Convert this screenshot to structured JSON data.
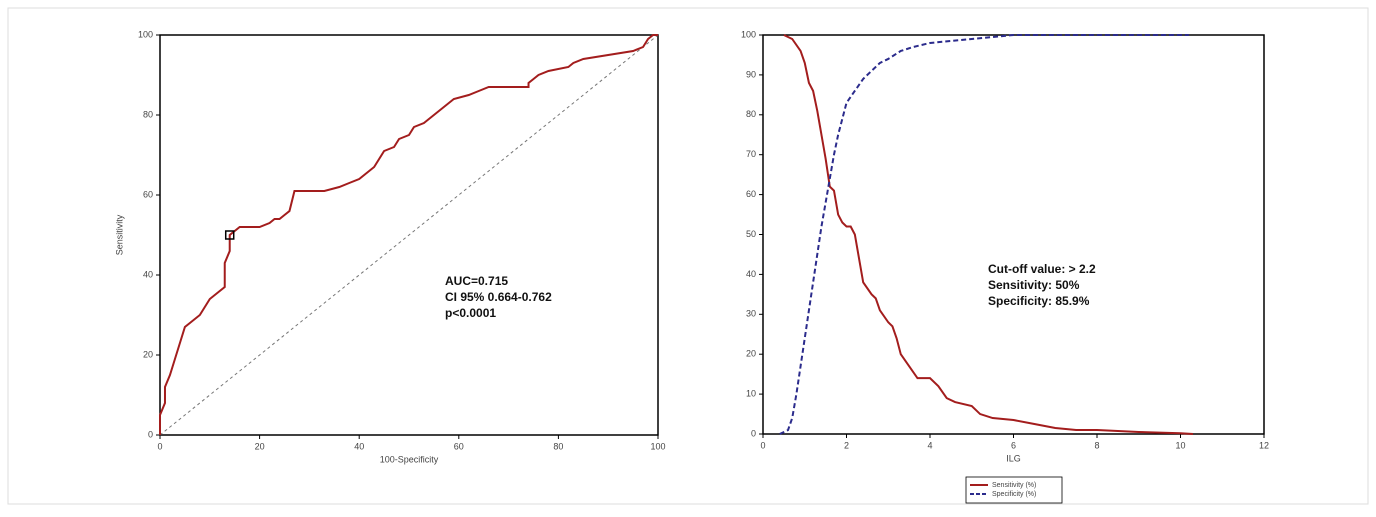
{
  "chart_data": [
    {
      "type": "line",
      "xlabel": "100-Specificity",
      "ylabel": "Sensitivity",
      "xlim": [
        0,
        100
      ],
      "ylim": [
        0,
        100
      ],
      "xticks": [
        0,
        20,
        40,
        60,
        80,
        100
      ],
      "yticks": [
        0,
        20,
        40,
        60,
        80,
        100
      ],
      "reference_line": true,
      "series": [
        {
          "color": "#a31d1d",
          "line_style": "solid",
          "x": [
            0,
            0,
            1,
            1,
            2,
            3,
            4,
            5,
            6,
            8,
            9,
            10,
            12,
            13,
            13,
            14,
            14,
            15,
            16,
            20,
            22,
            23,
            24,
            25,
            26,
            27,
            33,
            36,
            38,
            40,
            42,
            43,
            44,
            45,
            47,
            48,
            50,
            51,
            53,
            54,
            56,
            57,
            59,
            62,
            64,
            66,
            74,
            74,
            75,
            76,
            78,
            82,
            83,
            85,
            95,
            97,
            98,
            99,
            100
          ],
          "values": [
            0,
            5,
            8,
            12,
            15,
            19,
            23,
            27,
            28,
            30,
            32,
            34,
            36,
            37,
            43,
            46,
            50,
            51,
            52,
            52,
            53,
            54,
            54,
            55,
            56,
            61,
            61,
            62,
            63,
            64,
            66,
            67,
            69,
            71,
            72,
            74,
            75,
            77,
            78,
            79,
            81,
            82,
            84,
            85,
            86,
            87,
            87,
            88,
            89,
            90,
            91,
            92,
            93,
            94,
            96,
            97,
            99,
            100,
            100
          ]
        }
      ],
      "cutoff_point": {
        "x": 14,
        "y": 50
      },
      "annotations": [
        "AUC=0.715",
        "CI 95% 0.664-0.762",
        "p<0.0001"
      ]
    },
    {
      "type": "line",
      "xlabel": "ILG",
      "xlim": [
        0,
        12
      ],
      "ylim": [
        0,
        100
      ],
      "xticks": [
        0,
        2,
        4,
        6,
        8,
        10,
        12
      ],
      "yticks": [
        0,
        10,
        20,
        30,
        40,
        50,
        60,
        70,
        80,
        90,
        100
      ],
      "reference_line": false,
      "series": [
        {
          "name": "Sensitivity (%)",
          "color": "#a31d1d",
          "line_style": "solid",
          "x": [
            0.5,
            0.7,
            0.9,
            1.0,
            1.1,
            1.2,
            1.3,
            1.4,
            1.5,
            1.6,
            1.7,
            1.8,
            1.9,
            2.0,
            2.1,
            2.2,
            2.3,
            2.4,
            2.6,
            2.7,
            2.8,
            3.0,
            3.1,
            3.2,
            3.3,
            3.5,
            3.7,
            4.0,
            4.2,
            4.4,
            4.6,
            5.0,
            5.2,
            5.5,
            6.0,
            6.5,
            7.0,
            7.5,
            8,
            9,
            10,
            10.3
          ],
          "values": [
            100,
            99,
            96,
            93,
            88,
            86,
            81,
            75,
            69,
            62,
            61,
            55,
            53,
            52,
            52,
            50,
            44,
            38,
            35,
            34,
            31,
            28,
            27,
            24,
            20,
            17,
            14,
            14,
            12,
            9,
            8,
            7,
            5,
            4,
            3.5,
            2.5,
            1.5,
            1,
            1,
            0.5,
            0.2,
            0
          ]
        },
        {
          "name": "Specificity (%)",
          "color": "#2b2b8c",
          "line_style": "dashed",
          "x": [
            0.4,
            0.6,
            0.7,
            0.8,
            0.9,
            1.0,
            1.1,
            1.2,
            1.3,
            1.4,
            1.5,
            1.6,
            1.7,
            1.8,
            1.9,
            2.0,
            2.2,
            2.4,
            2.6,
            2.8,
            3.0,
            3.3,
            3.6,
            4,
            5,
            6,
            10.2
          ],
          "values": [
            0,
            1,
            4,
            10,
            17,
            24,
            31,
            38,
            45,
            52,
            58,
            64,
            70,
            75,
            79,
            83,
            86,
            89,
            91,
            93,
            94,
            96,
            97,
            98,
            99,
            100,
            100
          ]
        }
      ],
      "annotations": [
        "Cut-off value: > 2.2",
        "Sensitivity: 50%",
        "Specificity: 85.9%"
      ]
    }
  ]
}
